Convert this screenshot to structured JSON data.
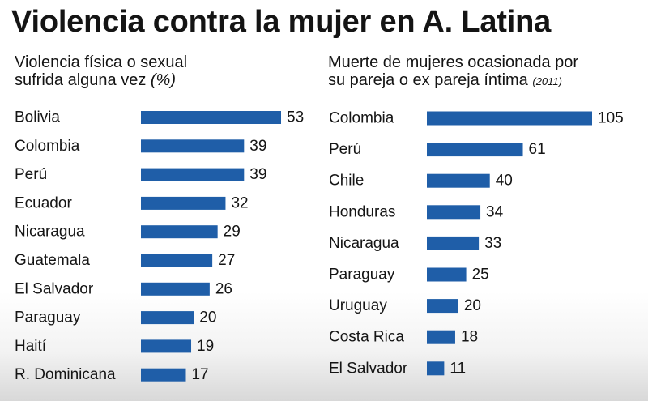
{
  "title": "Violencia contra la mujer en A. Latina",
  "colors": {
    "bar": "#1f5ea8",
    "text": "#151515",
    "background": "#ffffff"
  },
  "left_panel": {
    "subtitle_line1": "Violencia física o sexual",
    "subtitle_line2_main": "sufrida alguna vez ",
    "subtitle_line2_unit": "(%)"
  },
  "right_panel": {
    "subtitle_line1": "Muerte de mujeres ocasionada por",
    "subtitle_line2_main": "su pareja o ex pareja íntima ",
    "subtitle_line2_note": "(2011)"
  },
  "chart_data": [
    {
      "type": "bar",
      "orientation": "horizontal",
      "title": "Violencia física o sexual sufrida alguna vez (%)",
      "categories": [
        "Bolivia",
        "Colombia",
        "Perú",
        "Ecuador",
        "Nicaragua",
        "Guatemala",
        "El Salvador",
        "Paraguay",
        "Haití",
        "R. Dominicana"
      ],
      "values": [
        53,
        39,
        39,
        32,
        29,
        27,
        26,
        20,
        19,
        17
      ],
      "xlim": [
        0,
        53
      ],
      "grid": false
    },
    {
      "type": "bar",
      "orientation": "horizontal",
      "title": "Muerte de mujeres ocasionada por su pareja o ex pareja íntima (2011)",
      "categories": [
        "Colombia",
        "Perú",
        "Chile",
        "Honduras",
        "Nicaragua",
        "Paraguay",
        "Uruguay",
        "Costa Rica",
        "El Salvador"
      ],
      "values": [
        105,
        61,
        40,
        34,
        33,
        25,
        20,
        18,
        11
      ],
      "xlim": [
        0,
        105
      ],
      "grid": false
    }
  ]
}
